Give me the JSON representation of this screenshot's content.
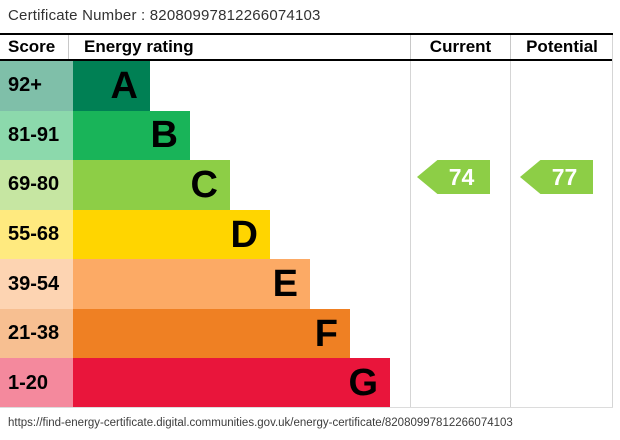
{
  "certificate": {
    "label": "Certificate Number :",
    "number": "82080997812266074103",
    "full_text": "Certificate Number : 82080997812266074103"
  },
  "table": {
    "headers": {
      "score": "Score",
      "rating": "Energy rating",
      "current": "Current",
      "potential": "Potential"
    }
  },
  "bands": [
    {
      "score": "92+",
      "letter": "A",
      "color": "#008054",
      "tint": "#7fbfa9"
    },
    {
      "score": "81-91",
      "letter": "B",
      "color": "#19b459",
      "tint": "#8cd9ac"
    },
    {
      "score": "69-80",
      "letter": "C",
      "color": "#8dce46",
      "tint": "#c6e6a2"
    },
    {
      "score": "55-68",
      "letter": "D",
      "color": "#ffd500",
      "tint": "#ffea7f"
    },
    {
      "score": "39-54",
      "letter": "E",
      "color": "#fcaa65",
      "tint": "#fdd4b2"
    },
    {
      "score": "21-38",
      "letter": "F",
      "color": "#ef8023",
      "tint": "#f7bf91"
    },
    {
      "score": "1-20",
      "letter": "G",
      "color": "#e9153b",
      "tint": "#f4899d"
    }
  ],
  "ratings": {
    "current": {
      "value": "74",
      "band": "C",
      "color": "#8dce46"
    },
    "potential": {
      "value": "77",
      "band": "C",
      "color": "#8dce46"
    }
  },
  "footer": {
    "url": "https://find-energy-certificate.digital.communities.gov.uk/energy-certificate/82080997812266074103"
  },
  "chart_data": {
    "type": "bar",
    "orientation": "horizontal",
    "title": "Energy rating",
    "categories": [
      "A",
      "B",
      "C",
      "D",
      "E",
      "F",
      "G"
    ],
    "score_ranges": [
      "92+",
      "81-91",
      "69-80",
      "55-68",
      "39-54",
      "21-38",
      "1-20"
    ],
    "band_colors": [
      "#008054",
      "#19b459",
      "#8dce46",
      "#ffd500",
      "#fcaa65",
      "#ef8023",
      "#e9153b"
    ],
    "series": [
      {
        "name": "Current",
        "value": 74,
        "band": "C"
      },
      {
        "name": "Potential",
        "value": 77,
        "band": "C"
      }
    ],
    "value_range": [
      1,
      100
    ],
    "legend_position": "right-columns",
    "grid": false
  }
}
